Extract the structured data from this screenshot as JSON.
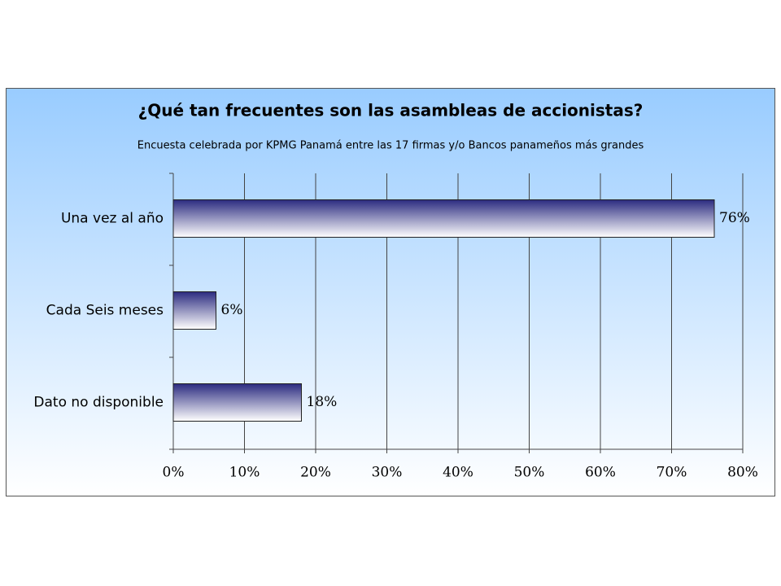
{
  "chart_data": {
    "type": "bar",
    "orientation": "horizontal",
    "title": "¿Qué tan frecuentes son las asambleas de accionistas?",
    "subtitle": "Encuesta celebrada por KPMG Panamá entre las 17 firmas y/o Bancos panameños más grandes",
    "categories": [
      "Una vez al año",
      "Cada Seis meses",
      "Dato no disponible"
    ],
    "values": [
      76,
      6,
      18
    ],
    "value_labels": [
      "76%",
      "6%",
      "18%"
    ],
    "color": "#2b2b80",
    "xlim": [
      0,
      80
    ],
    "xticks": [
      {
        "value": 0,
        "label": "0%"
      },
      {
        "value": 10,
        "label": "10%"
      },
      {
        "value": 20,
        "label": "20%"
      },
      {
        "value": 30,
        "label": "30%"
      },
      {
        "value": 40,
        "label": "40%"
      },
      {
        "value": 50,
        "label": "50%"
      },
      {
        "value": 60,
        "label": "60%"
      },
      {
        "value": 70,
        "label": "70%"
      },
      {
        "value": 80,
        "label": "80%"
      }
    ],
    "grid": true
  }
}
